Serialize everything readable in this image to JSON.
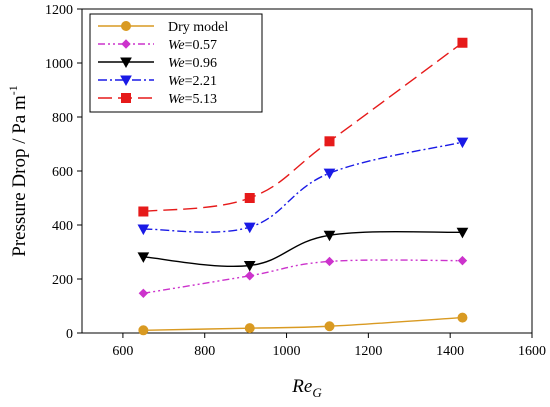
{
  "chart_data": {
    "type": "line",
    "title": "",
    "xlabel": "Re",
    "xlabel_subscript": "G",
    "ylabel": "Pressure Drop / Pa m",
    "ylabel_superscript": "-1",
    "xlim": [
      500,
      1600
    ],
    "ylim": [
      0,
      1200
    ],
    "xticks": [
      "600",
      "800",
      "1000",
      "1200",
      "1400",
      "1600"
    ],
    "yticks": [
      "0",
      "200",
      "400",
      "600",
      "800",
      "1000",
      "1200"
    ],
    "grid": false,
    "legend_position": "top-left",
    "x": [
      650,
      910,
      1105,
      1430
    ],
    "series": [
      {
        "name": "Dry model",
        "name_italic": "",
        "name_rest": "Dry model",
        "color": "#D99A22",
        "marker": "circle",
        "dash": "solid",
        "values": [
          10,
          18,
          25,
          57
        ]
      },
      {
        "name": "We=0.57",
        "name_italic": "We",
        "name_rest": "=0.57",
        "color": "#CC33CC",
        "marker": "diamond",
        "dash": "dash-dot-dot",
        "values": [
          147,
          212,
          265,
          268
        ]
      },
      {
        "name": "We=0.96",
        "name_italic": "We",
        "name_rest": "=0.96",
        "color": "#000000",
        "marker": "triangle-down",
        "dash": "solid",
        "values": [
          282,
          250,
          362,
          373
        ]
      },
      {
        "name": "We=2.21",
        "name_italic": "We",
        "name_rest": "=2.21",
        "color": "#1A1AE6",
        "marker": "triangle-down",
        "dash": "dash-dot",
        "values": [
          385,
          392,
          592,
          707
        ]
      },
      {
        "name": "We=5.13",
        "name_italic": "We",
        "name_rest": "=5.13",
        "color": "#E61A1A",
        "marker": "square",
        "dash": "long-dash",
        "values": [
          450,
          500,
          710,
          1075
        ]
      }
    ]
  }
}
